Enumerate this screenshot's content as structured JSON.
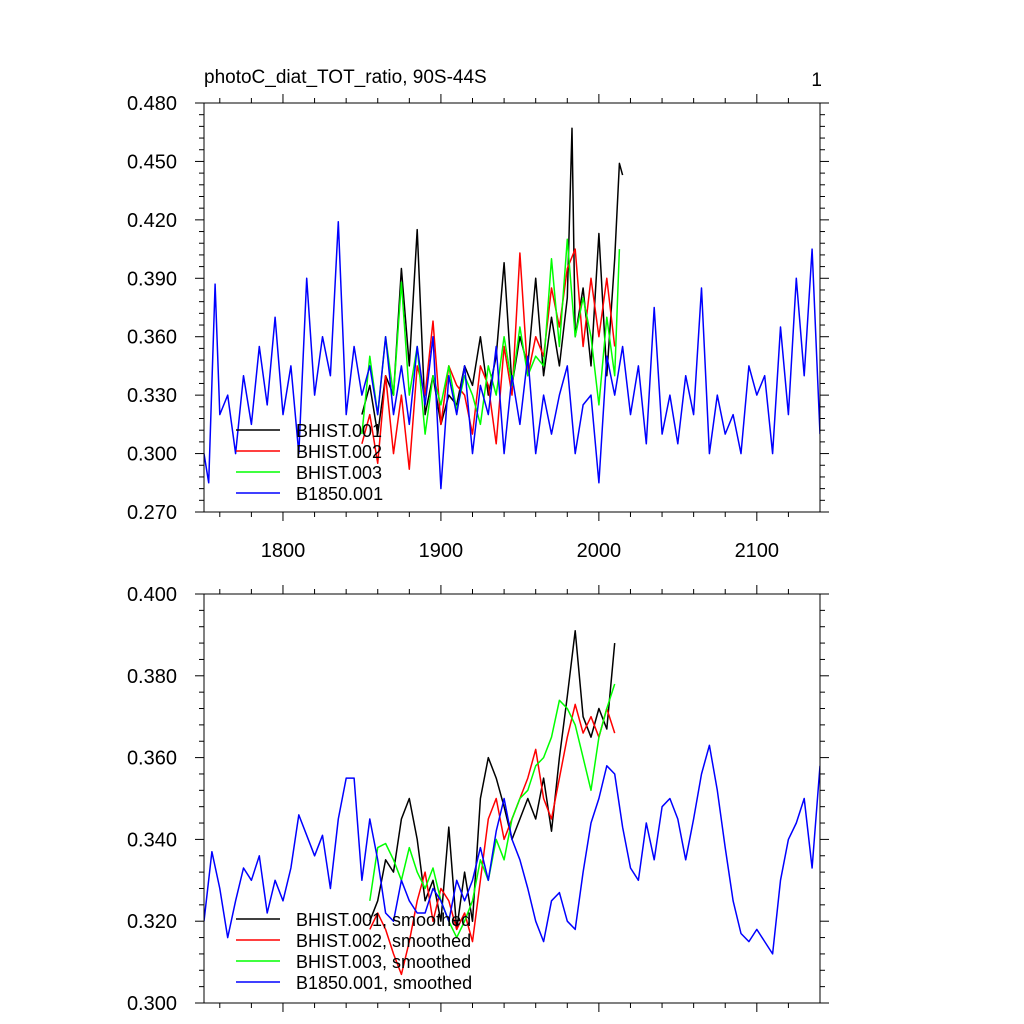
{
  "figure": {
    "title": "photoC_diat_TOT_ratio, 90S-44S",
    "panel_label": "1"
  },
  "chart_data": [
    {
      "type": "line",
      "title": "photoC_diat_TOT_ratio, 90S-44S",
      "xlabel": "",
      "ylabel": "",
      "xlim": [
        1750,
        2140
      ],
      "ylim": [
        0.27,
        0.48
      ],
      "xticks": [
        1800,
        1900,
        2000,
        2100
      ],
      "xtick_labels": [
        "1800",
        "1900",
        "2000",
        "2100"
      ],
      "yticks": [
        0.27,
        0.3,
        0.33,
        0.36,
        0.39,
        0.42,
        0.45,
        0.48
      ],
      "ytick_labels": [
        "0.270",
        "0.300",
        "0.330",
        "0.360",
        "0.390",
        "0.420",
        "0.450",
        "0.480"
      ],
      "grid": false,
      "legend_position": "bottom-left",
      "series": [
        {
          "name": "BHIST.001",
          "color": "#000000",
          "x": [
            1850,
            1855,
            1860,
            1865,
            1870,
            1875,
            1880,
            1885,
            1890,
            1895,
            1900,
            1905,
            1910,
            1915,
            1920,
            1925,
            1930,
            1935,
            1940,
            1945,
            1950,
            1955,
            1960,
            1965,
            1970,
            1975,
            1980,
            1983,
            1985,
            1990,
            1995,
            2000,
            2005,
            2010,
            2013,
            2015
          ],
          "values": [
            0.32,
            0.335,
            0.31,
            0.34,
            0.33,
            0.395,
            0.345,
            0.415,
            0.32,
            0.34,
            0.315,
            0.33,
            0.325,
            0.345,
            0.335,
            0.36,
            0.33,
            0.35,
            0.398,
            0.335,
            0.36,
            0.345,
            0.39,
            0.34,
            0.37,
            0.345,
            0.38,
            0.467,
            0.36,
            0.385,
            0.345,
            0.413,
            0.34,
            0.4,
            0.449,
            0.443
          ]
        },
        {
          "name": "BHIST.002",
          "color": "#ff0000",
          "x": [
            1850,
            1855,
            1860,
            1865,
            1870,
            1875,
            1880,
            1885,
            1890,
            1895,
            1900,
            1905,
            1910,
            1915,
            1920,
            1925,
            1930,
            1935,
            1940,
            1945,
            1950,
            1955,
            1960,
            1965,
            1970,
            1975,
            1980,
            1985,
            1990,
            1995,
            2000,
            2005,
            2010
          ],
          "values": [
            0.305,
            0.32,
            0.295,
            0.34,
            0.3,
            0.33,
            0.292,
            0.345,
            0.33,
            0.368,
            0.315,
            0.345,
            0.335,
            0.33,
            0.31,
            0.345,
            0.335,
            0.305,
            0.355,
            0.33,
            0.403,
            0.34,
            0.36,
            0.35,
            0.385,
            0.365,
            0.395,
            0.405,
            0.355,
            0.39,
            0.36,
            0.39,
            0.355
          ]
        },
        {
          "name": "BHIST.003",
          "color": "#00ff00",
          "x": [
            1850,
            1855,
            1860,
            1865,
            1870,
            1875,
            1880,
            1885,
            1890,
            1895,
            1900,
            1905,
            1910,
            1915,
            1920,
            1925,
            1930,
            1935,
            1940,
            1945,
            1950,
            1955,
            1960,
            1965,
            1970,
            1975,
            1980,
            1985,
            1990,
            1995,
            2000,
            2005,
            2010,
            2013
          ],
          "values": [
            0.31,
            0.35,
            0.32,
            0.36,
            0.33,
            0.388,
            0.33,
            0.355,
            0.31,
            0.34,
            0.325,
            0.345,
            0.322,
            0.34,
            0.33,
            0.315,
            0.345,
            0.33,
            0.36,
            0.335,
            0.365,
            0.34,
            0.35,
            0.345,
            0.4,
            0.355,
            0.41,
            0.36,
            0.38,
            0.36,
            0.325,
            0.37,
            0.34,
            0.405
          ]
        },
        {
          "name": "B1850.001",
          "color": "#0000ff",
          "x": [
            1750,
            1753,
            1757,
            1760,
            1765,
            1770,
            1775,
            1780,
            1785,
            1790,
            1795,
            1800,
            1805,
            1810,
            1815,
            1820,
            1825,
            1830,
            1835,
            1840,
            1845,
            1850,
            1855,
            1860,
            1865,
            1870,
            1875,
            1880,
            1885,
            1890,
            1895,
            1900,
            1905,
            1910,
            1915,
            1920,
            1925,
            1930,
            1935,
            1940,
            1945,
            1950,
            1955,
            1960,
            1965,
            1970,
            1975,
            1980,
            1985,
            1990,
            1995,
            2000,
            2005,
            2010,
            2015,
            2020,
            2025,
            2030,
            2035,
            2040,
            2045,
            2050,
            2055,
            2060,
            2065,
            2070,
            2075,
            2080,
            2085,
            2090,
            2095,
            2100,
            2105,
            2110,
            2115,
            2120,
            2125,
            2130,
            2135,
            2140
          ],
          "values": [
            0.3,
            0.285,
            0.387,
            0.32,
            0.33,
            0.3,
            0.34,
            0.315,
            0.355,
            0.325,
            0.37,
            0.32,
            0.345,
            0.3,
            0.39,
            0.33,
            0.36,
            0.34,
            0.419,
            0.32,
            0.355,
            0.33,
            0.345,
            0.32,
            0.36,
            0.32,
            0.345,
            0.315,
            0.355,
            0.325,
            0.36,
            0.282,
            0.34,
            0.32,
            0.345,
            0.3,
            0.335,
            0.32,
            0.355,
            0.3,
            0.34,
            0.315,
            0.35,
            0.3,
            0.33,
            0.31,
            0.33,
            0.345,
            0.3,
            0.325,
            0.33,
            0.285,
            0.35,
            0.33,
            0.355,
            0.32,
            0.345,
            0.305,
            0.375,
            0.31,
            0.33,
            0.305,
            0.34,
            0.32,
            0.385,
            0.3,
            0.33,
            0.31,
            0.32,
            0.3,
            0.345,
            0.33,
            0.34,
            0.3,
            0.365,
            0.32,
            0.39,
            0.34,
            0.405,
            0.31
          ]
        }
      ]
    },
    {
      "type": "line",
      "title": "",
      "xlabel": "",
      "ylabel": "",
      "xlim": [
        1750,
        2140
      ],
      "ylim": [
        0.3,
        0.4
      ],
      "xticks": [
        1800,
        1900,
        2000,
        2100
      ],
      "xtick_labels": [
        "",
        "",
        "",
        ""
      ],
      "yticks": [
        0.3,
        0.32,
        0.34,
        0.36,
        0.38,
        0.4
      ],
      "ytick_labels": [
        "0.300",
        "0.320",
        "0.340",
        "0.360",
        "0.380",
        "0.400"
      ],
      "grid": false,
      "legend_position": "bottom-left",
      "series": [
        {
          "name": "BHIST.001, smoothed",
          "color": "#000000",
          "x": [
            1855,
            1860,
            1865,
            1870,
            1875,
            1880,
            1885,
            1890,
            1895,
            1900,
            1905,
            1910,
            1915,
            1920,
            1925,
            1930,
            1935,
            1940,
            1945,
            1950,
            1955,
            1960,
            1965,
            1970,
            1975,
            1980,
            1985,
            1990,
            1995,
            2000,
            2005,
            2010
          ],
          "values": [
            0.32,
            0.325,
            0.335,
            0.332,
            0.345,
            0.35,
            0.34,
            0.325,
            0.33,
            0.32,
            0.343,
            0.318,
            0.332,
            0.32,
            0.35,
            0.36,
            0.355,
            0.348,
            0.34,
            0.345,
            0.35,
            0.345,
            0.355,
            0.342,
            0.36,
            0.375,
            0.391,
            0.37,
            0.365,
            0.372,
            0.367,
            0.388
          ]
        },
        {
          "name": "BHIST.002, smoothed",
          "color": "#ff0000",
          "x": [
            1855,
            1860,
            1865,
            1870,
            1875,
            1880,
            1885,
            1890,
            1895,
            1900,
            1905,
            1910,
            1915,
            1920,
            1925,
            1930,
            1935,
            1940,
            1945,
            1950,
            1955,
            1960,
            1965,
            1970,
            1975,
            1980,
            1985,
            1990,
            1995,
            2000,
            2005,
            2010
          ],
          "values": [
            0.318,
            0.322,
            0.318,
            0.312,
            0.307,
            0.315,
            0.325,
            0.332,
            0.32,
            0.328,
            0.325,
            0.318,
            0.322,
            0.315,
            0.33,
            0.345,
            0.35,
            0.34,
            0.345,
            0.35,
            0.355,
            0.362,
            0.35,
            0.345,
            0.355,
            0.365,
            0.373,
            0.366,
            0.37,
            0.365,
            0.372,
            0.366
          ]
        },
        {
          "name": "BHIST.003, smoothed",
          "color": "#00ff00",
          "x": [
            1855,
            1860,
            1865,
            1870,
            1875,
            1880,
            1885,
            1890,
            1895,
            1900,
            1905,
            1910,
            1915,
            1920,
            1925,
            1930,
            1935,
            1940,
            1945,
            1950,
            1955,
            1960,
            1965,
            1970,
            1975,
            1980,
            1985,
            1990,
            1995,
            2000,
            2005,
            2010
          ],
          "values": [
            0.325,
            0.338,
            0.339,
            0.335,
            0.33,
            0.338,
            0.332,
            0.328,
            0.333,
            0.325,
            0.32,
            0.316,
            0.32,
            0.325,
            0.335,
            0.33,
            0.34,
            0.335,
            0.345,
            0.35,
            0.352,
            0.358,
            0.36,
            0.365,
            0.374,
            0.372,
            0.368,
            0.36,
            0.352,
            0.365,
            0.372,
            0.378
          ]
        },
        {
          "name": "B1850.001, smoothed",
          "color": "#0000ff",
          "x": [
            1750,
            1755,
            1760,
            1765,
            1770,
            1775,
            1780,
            1785,
            1790,
            1795,
            1800,
            1805,
            1810,
            1815,
            1820,
            1825,
            1830,
            1835,
            1840,
            1845,
            1850,
            1855,
            1860,
            1865,
            1870,
            1875,
            1880,
            1885,
            1890,
            1895,
            1900,
            1905,
            1910,
            1915,
            1920,
            1925,
            1930,
            1935,
            1940,
            1945,
            1950,
            1955,
            1960,
            1965,
            1970,
            1975,
            1980,
            1985,
            1990,
            1995,
            2000,
            2005,
            2010,
            2015,
            2020,
            2025,
            2030,
            2035,
            2040,
            2045,
            2050,
            2055,
            2060,
            2065,
            2070,
            2075,
            2080,
            2085,
            2090,
            2095,
            2100,
            2105,
            2110,
            2115,
            2120,
            2125,
            2130,
            2135,
            2140
          ],
          "values": [
            0.32,
            0.337,
            0.328,
            0.316,
            0.325,
            0.333,
            0.33,
            0.336,
            0.322,
            0.33,
            0.325,
            0.333,
            0.346,
            0.341,
            0.336,
            0.341,
            0.328,
            0.345,
            0.355,
            0.355,
            0.33,
            0.345,
            0.335,
            0.322,
            0.32,
            0.33,
            0.325,
            0.322,
            0.322,
            0.328,
            0.325,
            0.32,
            0.33,
            0.325,
            0.33,
            0.338,
            0.33,
            0.342,
            0.35,
            0.34,
            0.335,
            0.328,
            0.32,
            0.315,
            0.325,
            0.327,
            0.32,
            0.318,
            0.332,
            0.344,
            0.35,
            0.358,
            0.356,
            0.343,
            0.333,
            0.33,
            0.344,
            0.335,
            0.348,
            0.35,
            0.345,
            0.335,
            0.345,
            0.356,
            0.363,
            0.352,
            0.338,
            0.325,
            0.317,
            0.315,
            0.318,
            0.315,
            0.312,
            0.33,
            0.34,
            0.344,
            0.35,
            0.333,
            0.358
          ]
        }
      ]
    }
  ]
}
